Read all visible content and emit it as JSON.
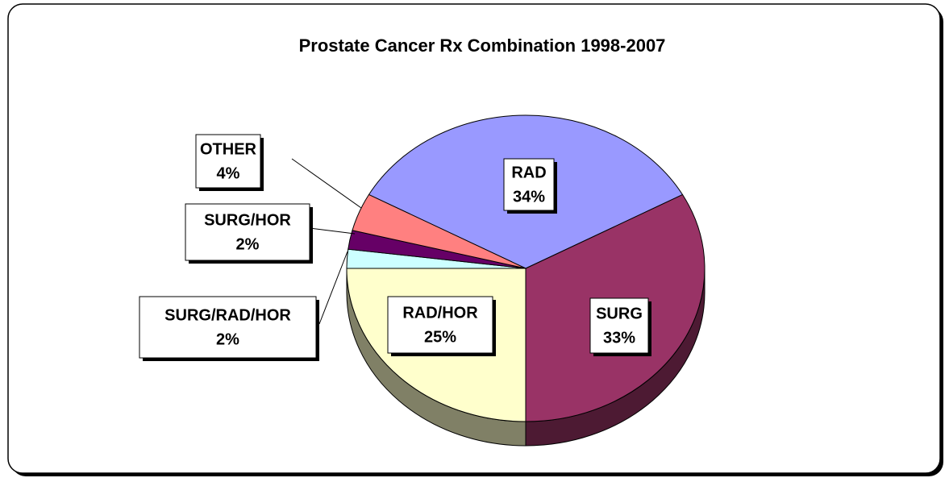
{
  "chart_data": {
    "type": "pie",
    "title": "Prostate Cancer Rx Combination 1998-2007",
    "categories": [
      "RAD",
      "SURG",
      "RAD/HOR",
      "SURG/RAD/HOR",
      "SURG/HOR",
      "OTHER"
    ],
    "values": [
      34,
      33,
      25,
      2,
      2,
      4
    ],
    "value_labels": [
      "34%",
      "33%",
      "25%",
      "2%",
      "2%",
      "4%"
    ],
    "colors": [
      "#9999ff",
      "#993366",
      "#ffffcc",
      "#ccffff",
      "#660066",
      "#ff8080"
    ]
  }
}
